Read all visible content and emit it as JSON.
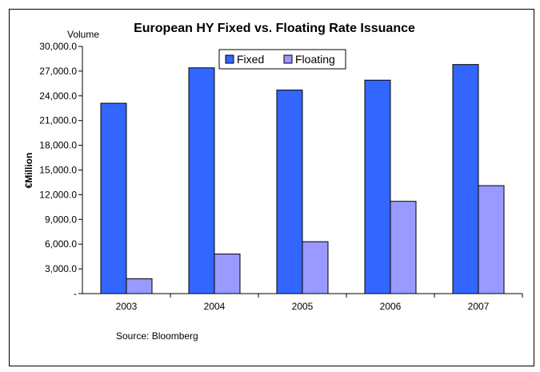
{
  "chart_data": {
    "type": "bar",
    "title": "European HY Fixed vs. Floating Rate Issuance",
    "top_label": "Volume",
    "ylabel": "€Million",
    "xlabel": "",
    "source": "Source: Bloomberg",
    "categories": [
      "2003",
      "2004",
      "2005",
      "2006",
      "2007"
    ],
    "series": [
      {
        "name": "Fixed",
        "color": "#3366ff",
        "values": [
          23100,
          27400,
          24700,
          25900,
          27800
        ]
      },
      {
        "name": "Floating",
        "color": "#9999ff",
        "values": [
          1800,
          4800,
          6300,
          11200,
          13100
        ]
      }
    ],
    "ylim": [
      0,
      30000
    ],
    "yticks": [
      "-",
      "3,000.0",
      "6,000.0",
      "9,000.0",
      "12,000.0",
      "15,000.0",
      "18,000.0",
      "21,000.0",
      "24,000.0",
      "27,000.0",
      "30,000.0"
    ],
    "grid": false,
    "legend": "top-center"
  }
}
